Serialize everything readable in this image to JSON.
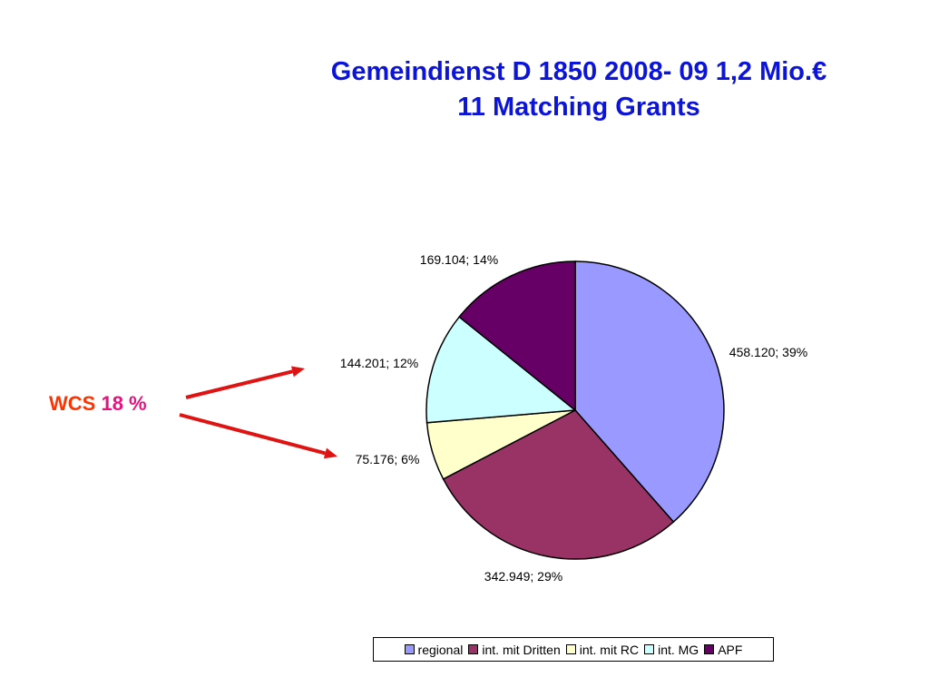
{
  "title": {
    "line1": "Gemeindienst D 1850 2008- 09 1,2 Mio.€",
    "line2": "11 Matching Grants"
  },
  "annotation": {
    "name": "WCS",
    "percent": "18 %",
    "arrow_color": "#e01212"
  },
  "chart_data": {
    "type": "pie",
    "title": "",
    "start_angle_deg": 0,
    "direction": "clockwise",
    "slices": [
      {
        "name": "regional",
        "value": 458120,
        "label": "458.120; 39%",
        "color": "#9999ff"
      },
      {
        "name": "int. mit Dritten",
        "value": 342949,
        "label": "342.949; 29%",
        "color": "#993366"
      },
      {
        "name": "int. mit RC",
        "value": 75176,
        "label": "75.176; 6%",
        "color": "#ffffcc"
      },
      {
        "name": "int. MG",
        "value": 144201,
        "label": "144.201; 12%",
        "color": "#ccffff"
      },
      {
        "name": "APF",
        "value": 169104,
        "label": "169.104; 14%",
        "color": "#660066"
      }
    ],
    "legend_position": "bottom"
  }
}
